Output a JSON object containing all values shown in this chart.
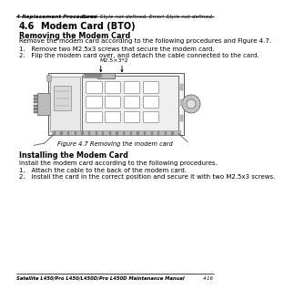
{
  "bg_color": "#ffffff",
  "header_left": "4 Replacement Procedures",
  "header_right": "Error! Style not defined. Error! Style not defined.",
  "footer_left": "Satellite L450/Pro L450/L450D/Pro L450D Maintenance Manual",
  "footer_right": "4-16",
  "section_number": "4.6",
  "section_indent": 45,
  "section_name": "Modem Card (BTO)",
  "subsection1": "Removing the Modem Card",
  "para1": "Remove the modem card according to the following procedures and Figure 4.7.",
  "list1_1": "1.   Remove two M2.5x3 screws that secure the modem card.",
  "list1_2": "2.   Flip the modem card over, and detach the cable connected to the card.",
  "screw_label": "M2.5×3*2",
  "figure_caption": "Figure 4.7 Removing the modem card",
  "subsection2": "Installing the Modem Card",
  "para2": "Install the modem card according to the following procedures.",
  "list2_1": "1.   Attach the cable to the back of the modem card.",
  "list2_2": "2.   Install the card in the correct position and secure it with two M2.5x3 screws.",
  "text_color": "#000000",
  "line_color": "#000000",
  "diagram_edge": "#555555",
  "diagram_fill": "#f5f5f5",
  "diagram_dark": "#888888",
  "diagram_mid": "#bbbbbb",
  "diagram_light": "#e8e8e8",
  "white": "#ffffff"
}
